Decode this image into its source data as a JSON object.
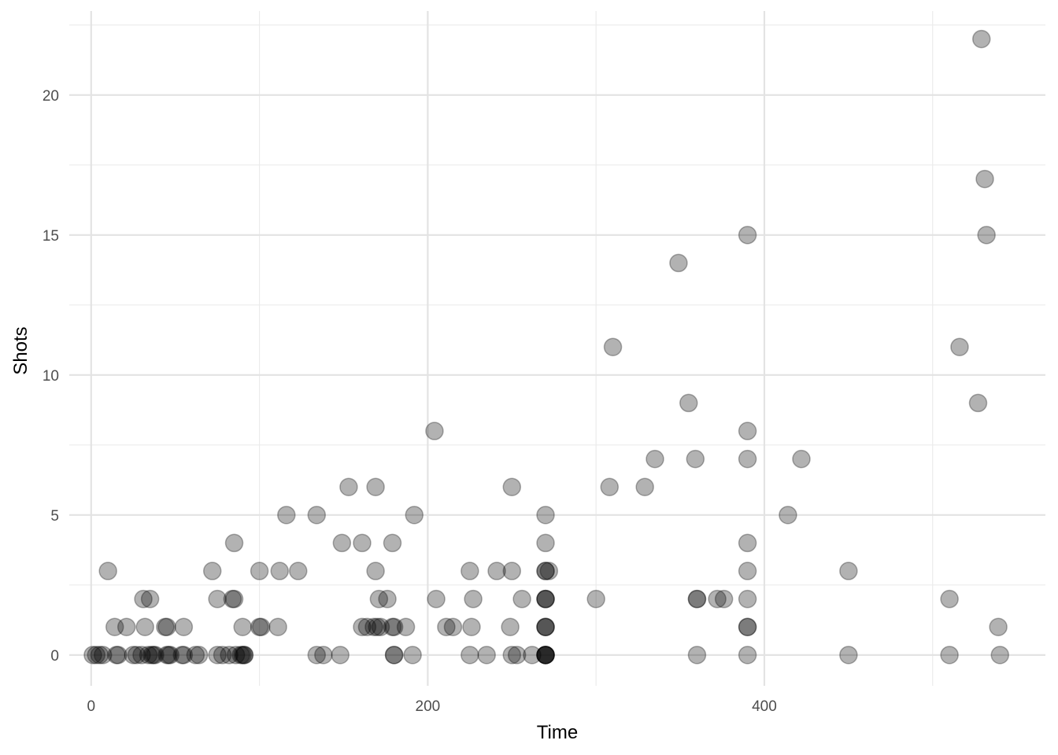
{
  "chart_data": {
    "type": "scatter",
    "xlabel": "Time",
    "ylabel": "Shots",
    "xlim": [
      -13,
      567
    ],
    "ylim": [
      -1.1,
      23
    ],
    "x_ticks": [
      0,
      200,
      400
    ],
    "x_tick_labels": [
      "0",
      "200",
      "400"
    ],
    "x_minor_ticks": [
      100,
      300,
      500
    ],
    "y_ticks": [
      0,
      5,
      10,
      15,
      20
    ],
    "y_tick_labels": [
      "0",
      "5",
      "10",
      "15",
      "20"
    ],
    "y_minor_ticks": [
      2.5,
      7.5,
      12.5,
      17.5,
      22.5
    ],
    "grid": true,
    "point_color": "#000000",
    "point_opacity": 0.3,
    "points": [
      {
        "x": 1,
        "y": 0
      },
      {
        "x": 3,
        "y": 0
      },
      {
        "x": 5,
        "y": 0
      },
      {
        "x": 7,
        "y": 0
      },
      {
        "x": 10,
        "y": 3
      },
      {
        "x": 14,
        "y": 1
      },
      {
        "x": 15,
        "y": 0
      },
      {
        "x": 16,
        "y": 0
      },
      {
        "x": 21,
        "y": 1
      },
      {
        "x": 25,
        "y": 0
      },
      {
        "x": 27,
        "y": 0
      },
      {
        "x": 30,
        "y": 0
      },
      {
        "x": 31,
        "y": 2
      },
      {
        "x": 32,
        "y": 1
      },
      {
        "x": 34,
        "y": 0
      },
      {
        "x": 35,
        "y": 2
      },
      {
        "x": 36,
        "y": 0
      },
      {
        "x": 37,
        "y": 0
      },
      {
        "x": 38,
        "y": 0
      },
      {
        "x": 44,
        "y": 1
      },
      {
        "x": 45,
        "y": 1
      },
      {
        "x": 45,
        "y": 0
      },
      {
        "x": 46,
        "y": 0
      },
      {
        "x": 47,
        "y": 0
      },
      {
        "x": 54,
        "y": 0
      },
      {
        "x": 55,
        "y": 1
      },
      {
        "x": 55,
        "y": 0
      },
      {
        "x": 62,
        "y": 0
      },
      {
        "x": 64,
        "y": 0
      },
      {
        "x": 72,
        "y": 3
      },
      {
        "x": 75,
        "y": 2
      },
      {
        "x": 75,
        "y": 0
      },
      {
        "x": 78,
        "y": 0
      },
      {
        "x": 82,
        "y": 0
      },
      {
        "x": 84,
        "y": 2
      },
      {
        "x": 85,
        "y": 4
      },
      {
        "x": 85,
        "y": 2
      },
      {
        "x": 86,
        "y": 0
      },
      {
        "x": 89,
        "y": 0
      },
      {
        "x": 90,
        "y": 1
      },
      {
        "x": 90,
        "y": 0
      },
      {
        "x": 91,
        "y": 0
      },
      {
        "x": 91,
        "y": 0
      },
      {
        "x": 100,
        "y": 3
      },
      {
        "x": 100,
        "y": 1
      },
      {
        "x": 101,
        "y": 1
      },
      {
        "x": 111,
        "y": 1
      },
      {
        "x": 112,
        "y": 3
      },
      {
        "x": 116,
        "y": 5
      },
      {
        "x": 123,
        "y": 3
      },
      {
        "x": 134,
        "y": 5
      },
      {
        "x": 134,
        "y": 0
      },
      {
        "x": 138,
        "y": 0
      },
      {
        "x": 148,
        "y": 0
      },
      {
        "x": 149,
        "y": 4
      },
      {
        "x": 153,
        "y": 6
      },
      {
        "x": 161,
        "y": 4
      },
      {
        "x": 161,
        "y": 1
      },
      {
        "x": 164,
        "y": 1
      },
      {
        "x": 168,
        "y": 1
      },
      {
        "x": 169,
        "y": 6
      },
      {
        "x": 169,
        "y": 3
      },
      {
        "x": 170,
        "y": 1
      },
      {
        "x": 171,
        "y": 2
      },
      {
        "x": 172,
        "y": 1
      },
      {
        "x": 176,
        "y": 2
      },
      {
        "x": 179,
        "y": 4
      },
      {
        "x": 179,
        "y": 1
      },
      {
        "x": 180,
        "y": 1
      },
      {
        "x": 180,
        "y": 0
      },
      {
        "x": 180,
        "y": 0
      },
      {
        "x": 187,
        "y": 1
      },
      {
        "x": 191,
        "y": 0
      },
      {
        "x": 192,
        "y": 5
      },
      {
        "x": 204,
        "y": 8
      },
      {
        "x": 205,
        "y": 2
      },
      {
        "x": 211,
        "y": 1
      },
      {
        "x": 215,
        "y": 1
      },
      {
        "x": 225,
        "y": 0
      },
      {
        "x": 225,
        "y": 3
      },
      {
        "x": 226,
        "y": 1
      },
      {
        "x": 227,
        "y": 2
      },
      {
        "x": 235,
        "y": 0
      },
      {
        "x": 241,
        "y": 3
      },
      {
        "x": 249,
        "y": 1
      },
      {
        "x": 250,
        "y": 0
      },
      {
        "x": 250,
        "y": 6
      },
      {
        "x": 250,
        "y": 3
      },
      {
        "x": 253,
        "y": 0
      },
      {
        "x": 256,
        "y": 2
      },
      {
        "x": 262,
        "y": 0
      },
      {
        "x": 270,
        "y": 5
      },
      {
        "x": 270,
        "y": 4
      },
      {
        "x": 270,
        "y": 3
      },
      {
        "x": 270,
        "y": 3
      },
      {
        "x": 270,
        "y": 2
      },
      {
        "x": 270,
        "y": 2
      },
      {
        "x": 270,
        "y": 2
      },
      {
        "x": 270,
        "y": 1
      },
      {
        "x": 270,
        "y": 1
      },
      {
        "x": 270,
        "y": 1
      },
      {
        "x": 270,
        "y": 0
      },
      {
        "x": 270,
        "y": 0
      },
      {
        "x": 270,
        "y": 0
      },
      {
        "x": 270,
        "y": 0
      },
      {
        "x": 270,
        "y": 0
      },
      {
        "x": 272,
        "y": 3
      },
      {
        "x": 300,
        "y": 2
      },
      {
        "x": 308,
        "y": 6
      },
      {
        "x": 310,
        "y": 11
      },
      {
        "x": 329,
        "y": 6
      },
      {
        "x": 335,
        "y": 7
      },
      {
        "x": 349,
        "y": 14
      },
      {
        "x": 355,
        "y": 9
      },
      {
        "x": 359,
        "y": 7
      },
      {
        "x": 360,
        "y": 2
      },
      {
        "x": 360,
        "y": 2
      },
      {
        "x": 360,
        "y": 0
      },
      {
        "x": 372,
        "y": 2
      },
      {
        "x": 376,
        "y": 2
      },
      {
        "x": 390,
        "y": 15
      },
      {
        "x": 390,
        "y": 8
      },
      {
        "x": 390,
        "y": 7
      },
      {
        "x": 390,
        "y": 4
      },
      {
        "x": 390,
        "y": 3
      },
      {
        "x": 390,
        "y": 2
      },
      {
        "x": 390,
        "y": 1
      },
      {
        "x": 390,
        "y": 1
      },
      {
        "x": 390,
        "y": 0
      },
      {
        "x": 414,
        "y": 5
      },
      {
        "x": 422,
        "y": 7
      },
      {
        "x": 450,
        "y": 3
      },
      {
        "x": 450,
        "y": 0
      },
      {
        "x": 510,
        "y": 2
      },
      {
        "x": 510,
        "y": 0
      },
      {
        "x": 516,
        "y": 11
      },
      {
        "x": 527,
        "y": 9
      },
      {
        "x": 529,
        "y": 22
      },
      {
        "x": 531,
        "y": 17
      },
      {
        "x": 532,
        "y": 15
      },
      {
        "x": 539,
        "y": 1
      },
      {
        "x": 540,
        "y": 0
      }
    ]
  }
}
